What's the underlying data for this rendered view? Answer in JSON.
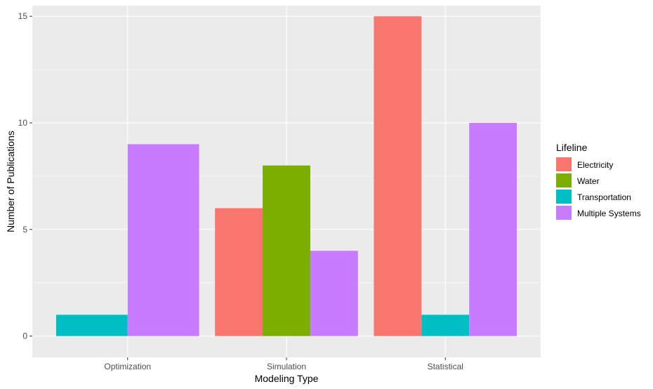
{
  "chart_data": {
    "type": "bar",
    "xlabel": "Modeling Type",
    "ylabel": "Number of Publications",
    "categories": [
      "Optimization",
      "Simulation",
      "Statistical"
    ],
    "ylim": [
      -1,
      15.5
    ],
    "yticks": [
      0,
      5,
      10,
      15
    ],
    "grid": true,
    "legend_title": "Lifeline",
    "legend_position": "right",
    "series": [
      {
        "name": "Electricity",
        "color": "#F8766D",
        "values": [
          null,
          6,
          15
        ]
      },
      {
        "name": "Water",
        "color": "#7CAE00",
        "values": [
          null,
          8,
          null
        ]
      },
      {
        "name": "Transportation",
        "color": "#00BFC4",
        "values": [
          1,
          null,
          1
        ]
      },
      {
        "name": "Multiple Systems",
        "color": "#C77CFF",
        "values": [
          9,
          4,
          10
        ]
      }
    ]
  }
}
